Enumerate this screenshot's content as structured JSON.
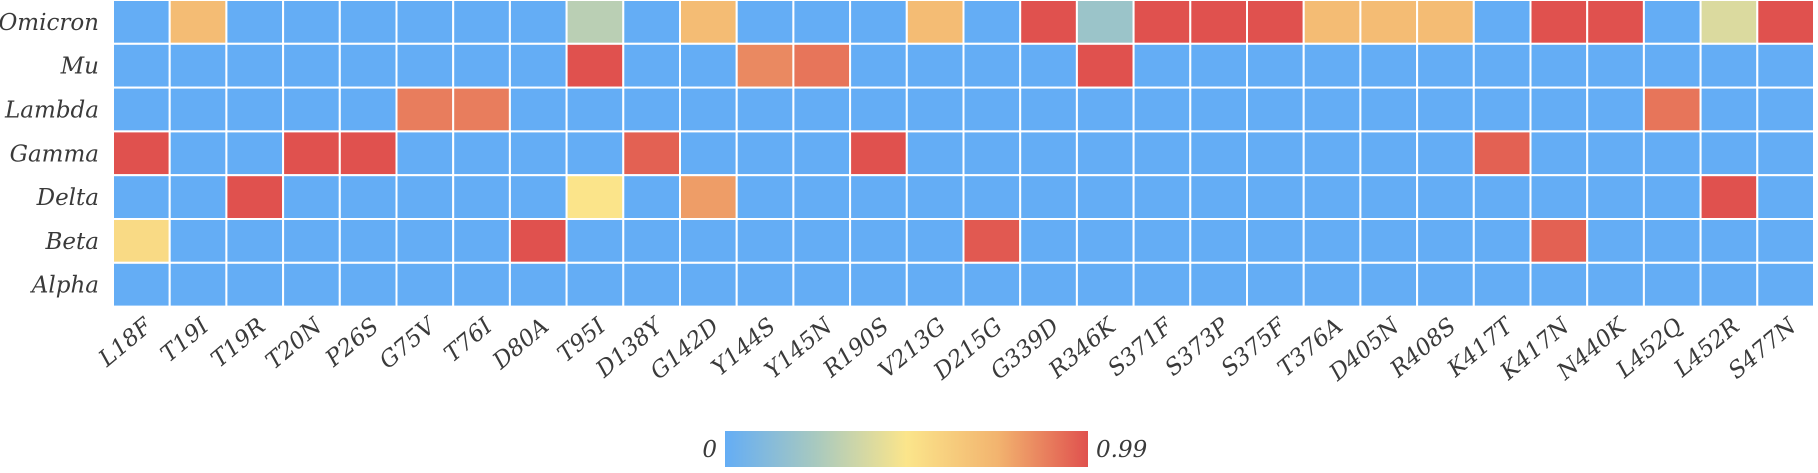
{
  "chart_data": {
    "type": "heatmap",
    "x_categories": [
      "L18F",
      "T19I",
      "T19R",
      "T20N",
      "P26S",
      "G75V",
      "T76I",
      "D80A",
      "T95I",
      "D138Y",
      "G142D",
      "Y144S",
      "Y145N",
      "R190S",
      "V213G",
      "D215G",
      "G339D",
      "R346K",
      "S371F",
      "S373P",
      "S375F",
      "T376A",
      "D405N",
      "R408S",
      "K417T",
      "K417N",
      "N440K",
      "L452Q",
      "L452R",
      "S477N"
    ],
    "y_categories": [
      "Omicron",
      "Mu",
      "Lambda",
      "Gamma",
      "Delta",
      "Beta",
      "Alpha"
    ],
    "values": [
      [
        0,
        0.7,
        0,
        0,
        0,
        0,
        0,
        0,
        0.3,
        0,
        0.7,
        0,
        0,
        0,
        0.7,
        0,
        0.99,
        0.2,
        0.99,
        0.99,
        0.99,
        0.7,
        0.7,
        0.7,
        0,
        0.99,
        0.99,
        0,
        0.4,
        0.99
      ],
      [
        0,
        0,
        0,
        0,
        0,
        0,
        0,
        0,
        0.99,
        0,
        0,
        0.85,
        0.9,
        0,
        0,
        0,
        0,
        0.99,
        0,
        0,
        0,
        0,
        0,
        0,
        0,
        0,
        0,
        0,
        0,
        0
      ],
      [
        0,
        0,
        0,
        0,
        0,
        0.88,
        0.88,
        0,
        0,
        0,
        0,
        0,
        0,
        0,
        0,
        0,
        0,
        0,
        0,
        0,
        0,
        0,
        0,
        0,
        0,
        0,
        0,
        0.9,
        0,
        0
      ],
      [
        0.99,
        0,
        0,
        0.99,
        0.99,
        0,
        0,
        0,
        0,
        0.95,
        0,
        0,
        0,
        0.99,
        0,
        0,
        0,
        0,
        0,
        0,
        0,
        0,
        0,
        0,
        0.95,
        0,
        0,
        0,
        0,
        0
      ],
      [
        0,
        0,
        0.99,
        0,
        0,
        0,
        0,
        0,
        0.5,
        0,
        0.8,
        0,
        0,
        0,
        0,
        0,
        0,
        0,
        0,
        0,
        0,
        0,
        0,
        0,
        0,
        0,
        0,
        0,
        0.99,
        0
      ],
      [
        0.55,
        0,
        0,
        0,
        0,
        0,
        0,
        0.99,
        0,
        0,
        0,
        0,
        0,
        0,
        0,
        0.97,
        0,
        0,
        0,
        0,
        0,
        0,
        0,
        0,
        0,
        0.95,
        0,
        0,
        0,
        0
      ],
      [
        0,
        0,
        0,
        0,
        0,
        0,
        0,
        0,
        0,
        0,
        0,
        0,
        0,
        0,
        0,
        0,
        0,
        0,
        0,
        0,
        0,
        0,
        0,
        0,
        0,
        0,
        0,
        0,
        0,
        0
      ]
    ],
    "colorbar": {
      "min_label": "0",
      "max_label": "0.99",
      "min": 0,
      "max": 0.99
    },
    "colors": [
      "#64adf5",
      "#a8c9bf",
      "#fbe58b",
      "#f2b46f",
      "#e0514e"
    ],
    "grid": true,
    "legend_position": "bottom-center"
  }
}
